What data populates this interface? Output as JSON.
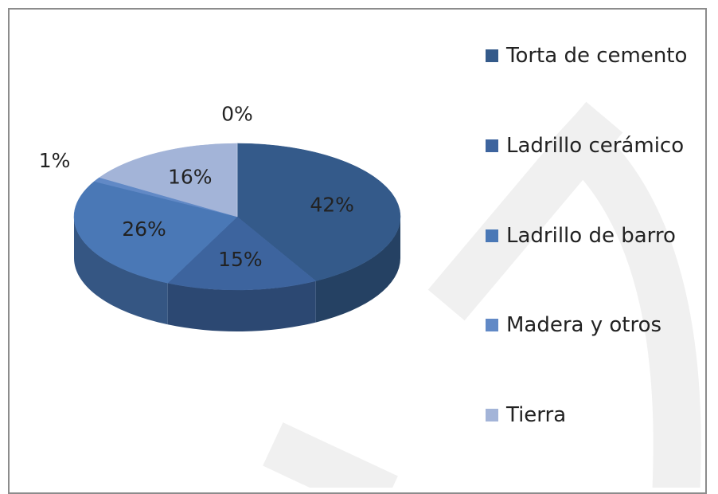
{
  "chart_data": {
    "type": "pie",
    "categories": [
      "Torta de cemento",
      "Ladrillo cerámico",
      "Ladrillo de barro",
      "Madera y otros",
      "Tierra",
      null
    ],
    "values": [
      42,
      15,
      26,
      1,
      16,
      0
    ],
    "value_labels": [
      "42%",
      "15%",
      "26%",
      "1%",
      "16%",
      "0%"
    ],
    "colors": [
      "#345a8a",
      "#3d649e",
      "#4a78b6",
      "#6189c6",
      "#a3b4d8",
      "#c6d0e6"
    ],
    "legend": "right"
  }
}
